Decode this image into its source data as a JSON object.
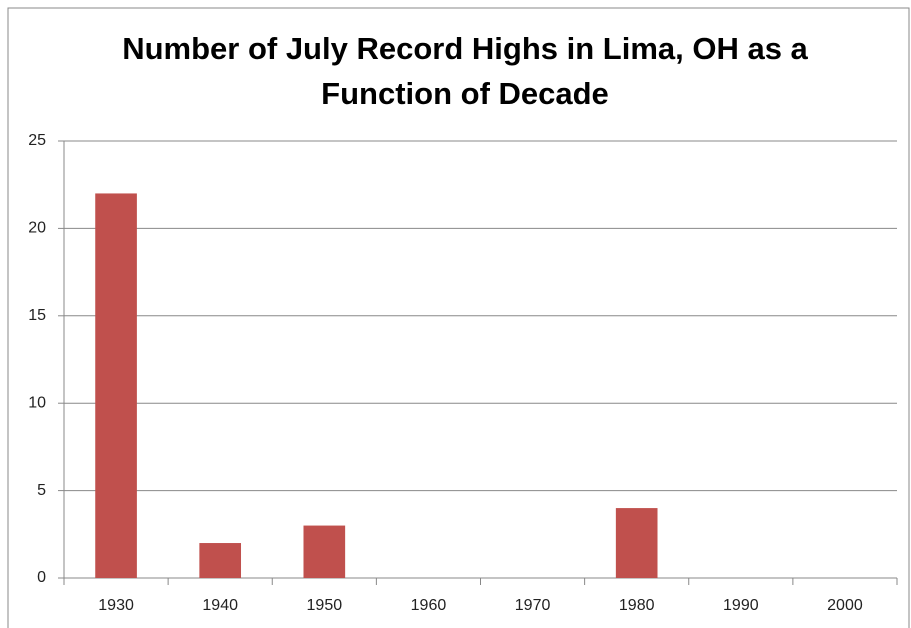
{
  "chart_data": {
    "type": "bar",
    "title": "Number of July Record Highs in Lima, OH as a Function of Decade",
    "categories": [
      "1930",
      "1940",
      "1950",
      "1960",
      "1970",
      "1980",
      "1990",
      "2000"
    ],
    "values": [
      22,
      2,
      3,
      0,
      0,
      4,
      0,
      0
    ],
    "color": "#c0504d",
    "ylim": [
      0,
      25
    ],
    "yticks": [
      0,
      5,
      10,
      15,
      20,
      25
    ],
    "grid": true
  }
}
